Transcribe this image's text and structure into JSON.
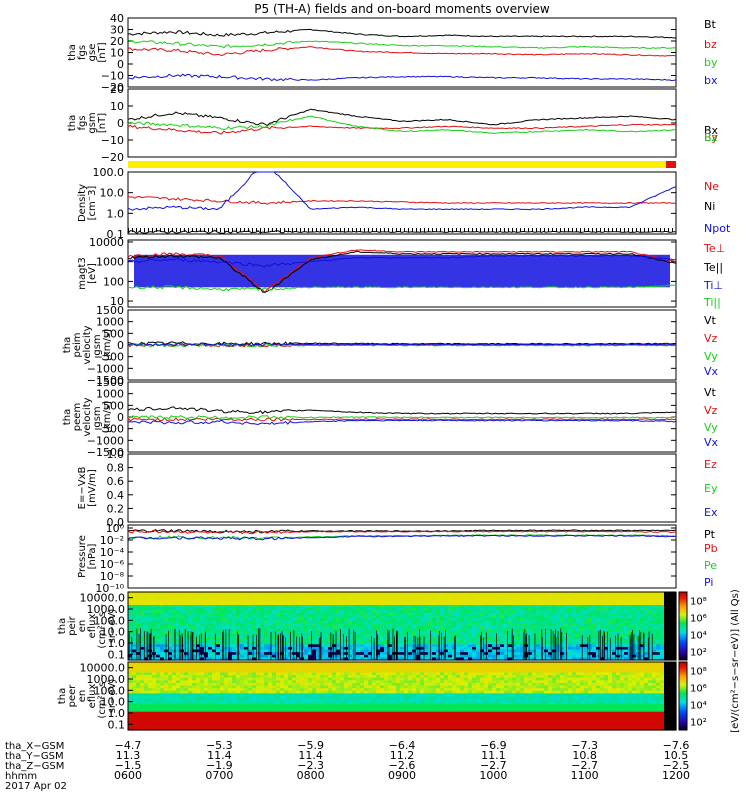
{
  "title": "P5 (TH-A) fields and on-board moments overview",
  "colors": {
    "black": "#000000",
    "red": "#e01010",
    "green": "#18d018",
    "blue": "#1010e0",
    "yellow": "#ffee00"
  },
  "chart_data": [
    {
      "type": "line",
      "ylabel": [
        "tha",
        "fgs",
        "gse",
        "[nT]"
      ],
      "ylim": [
        -20,
        40
      ],
      "yticks": [
        "40",
        "30",
        "20",
        "10",
        "0",
        "−10",
        "−20"
      ],
      "yvals": [
        40,
        30,
        20,
        10,
        0,
        -10,
        -20
      ],
      "series": [
        {
          "name": "Bt",
          "color": "#000000",
          "values": [
            26,
            28,
            25,
            27,
            30,
            26,
            24,
            25,
            24,
            24,
            24,
            24,
            23
          ]
        },
        {
          "name": "bz",
          "color": "#e01010",
          "values": [
            13,
            12,
            8,
            12,
            15,
            11,
            10,
            9,
            9,
            8,
            9,
            8,
            7
          ]
        },
        {
          "name": "by",
          "color": "#18d018",
          "values": [
            20,
            18,
            15,
            17,
            20,
            18,
            16,
            16,
            15,
            14,
            15,
            14,
            14
          ]
        },
        {
          "name": "bx",
          "color": "#1010e0",
          "values": [
            -12,
            -10,
            -11,
            -13,
            -14,
            -12,
            -11,
            -11,
            -12,
            -12,
            -13,
            -13,
            -14
          ]
        }
      ]
    },
    {
      "type": "line",
      "ylabel": [
        "tha",
        "fgs",
        "gsm",
        "[nT]"
      ],
      "ylim": [
        -20,
        20
      ],
      "yticks": [
        "20",
        "10",
        "0",
        "−10",
        "−20"
      ],
      "yvals": [
        20,
        10,
        0,
        -10,
        -20
      ],
      "series": [
        {
          "name": "Bx",
          "color": "#000000",
          "values": [
            2,
            6,
            3,
            -1,
            8,
            4,
            1,
            2,
            -1,
            2,
            3,
            4,
            2
          ]
        },
        {
          "name": "By",
          "color": "#e01010",
          "values": [
            -2,
            -4,
            -6,
            -3,
            -2,
            -3,
            -3,
            -2,
            -3,
            -3,
            -2,
            -1,
            -1
          ]
        },
        {
          "name": "Bz",
          "color": "#18d018",
          "values": [
            0,
            -1,
            -3,
            -2,
            4,
            -2,
            -5,
            -4,
            -6,
            -5,
            -4,
            -5,
            -4
          ]
        }
      ]
    },
    {
      "type": "line",
      "ylabel": [
        "Density",
        "[cm⁻3]"
      ],
      "ylim": [
        -1,
        2
      ],
      "log": true,
      "yticks": [
        "100.0",
        "10.0",
        "1.0",
        "0.1"
      ],
      "yvals": [
        2,
        1,
        0,
        -1
      ],
      "series": [
        {
          "name": "Ne",
          "color": "#e01010",
          "values": [
            0.8,
            0.7,
            0.6,
            0.5,
            0.6,
            0.6,
            0.55,
            0.5,
            0.5,
            0.5,
            0.5,
            0.5,
            0.5
          ]
        },
        {
          "name": "Ni",
          "color": "#000000",
          "values": [
            -0.9,
            -0.9,
            -0.9,
            -0.9,
            -0.9,
            -0.9,
            -0.9,
            -0.9,
            -0.9,
            -0.9,
            -0.9,
            -0.9,
            -0.9
          ]
        },
        {
          "name": "Npot",
          "color": "#1010e0",
          "values": [
            0.2,
            0.3,
            0.2,
            2.5,
            0.2,
            0.3,
            0.2,
            0.2,
            0.2,
            0.2,
            0.3,
            0.3,
            1.3
          ]
        }
      ]
    },
    {
      "type": "line",
      "ylabel": [
        "magt3",
        "[eV]"
      ],
      "ylim": [
        0.7,
        4.1
      ],
      "log": true,
      "yticks": [
        "10000",
        "1000",
        "100",
        "10"
      ],
      "yvals": [
        4,
        3,
        2,
        1
      ],
      "series": [
        {
          "name": "Te⊥",
          "color": "#e01010",
          "values": [
            3.3,
            3.4,
            3.3,
            1.5,
            3.2,
            3.6,
            3.5,
            3.5,
            3.5,
            3.5,
            3.5,
            3.5,
            3.0
          ]
        },
        {
          "name": "Te||",
          "color": "#000000",
          "values": [
            3.2,
            3.3,
            3.2,
            1.4,
            3.1,
            3.5,
            3.4,
            3.4,
            3.4,
            3.4,
            3.4,
            3.4,
            2.9
          ]
        },
        {
          "name": "Ti⊥",
          "color": "#1010e0",
          "values": [
            3.0,
            3.1,
            3.0,
            2.8,
            3.0,
            3.2,
            3.2,
            3.2,
            3.3,
            3.3,
            3.3,
            3.3,
            3.1
          ]
        },
        {
          "name": "Ti||",
          "color": "#18d018",
          "values": [
            1.7,
            1.7,
            1.6,
            1.6,
            1.7,
            1.7,
            1.7,
            1.7,
            1.7,
            1.7,
            1.7,
            1.7,
            1.8
          ]
        }
      ]
    },
    {
      "type": "line",
      "ylabel": [
        "tha",
        "peim",
        "velocity",
        "gsm",
        "[km/s]"
      ],
      "ylim": [
        -1500,
        1500
      ],
      "yticks": [
        "1500",
        "1000",
        "500",
        "0",
        "−500",
        "−1000",
        "−1500"
      ],
      "yvals": [
        1500,
        1000,
        500,
        0,
        -500,
        -1000,
        -1500
      ],
      "series": [
        {
          "name": "Vt",
          "color": "#000000",
          "values": [
            60,
            80,
            50,
            60,
            70,
            60,
            50,
            50,
            50,
            50,
            50,
            50,
            60
          ]
        },
        {
          "name": "Vz",
          "color": "#e01010",
          "values": [
            0,
            10,
            0,
            -10,
            0,
            0,
            0,
            0,
            0,
            0,
            0,
            0,
            0
          ]
        },
        {
          "name": "Vy",
          "color": "#18d018",
          "values": [
            -20,
            -10,
            -20,
            -10,
            -20,
            -10,
            -20,
            -20,
            -20,
            -20,
            -20,
            -20,
            -20
          ]
        },
        {
          "name": "Vx",
          "color": "#1010e0",
          "values": [
            20,
            30,
            20,
            30,
            20,
            20,
            20,
            20,
            20,
            20,
            20,
            20,
            20
          ]
        }
      ]
    },
    {
      "type": "line",
      "ylabel": [
        "tha",
        "peem",
        "velocity",
        "gsm",
        "[km/s]"
      ],
      "ylim": [
        -1500,
        1500
      ],
      "yticks": [
        "1500",
        "1000",
        "500",
        "0",
        "−500",
        "−1000",
        "−1500"
      ],
      "yvals": [
        1500,
        1000,
        500,
        0,
        -500,
        -1000,
        -1500
      ],
      "series": [
        {
          "name": "Vt",
          "color": "#000000",
          "values": [
            300,
            400,
            250,
            200,
            300,
            200,
            150,
            150,
            150,
            150,
            150,
            150,
            200
          ]
        },
        {
          "name": "Vz",
          "color": "#e01010",
          "values": [
            -100,
            -100,
            -100,
            -100,
            -100,
            -100,
            -100,
            -100,
            -100,
            -100,
            -100,
            -100,
            -100
          ]
        },
        {
          "name": "Vy",
          "color": "#18d018",
          "values": [
            -20,
            0,
            -20,
            0,
            -20,
            0,
            -20,
            -20,
            -20,
            -20,
            -20,
            -20,
            -20
          ]
        },
        {
          "name": "Vx",
          "color": "#1010e0",
          "values": [
            -200,
            -250,
            -200,
            -300,
            -200,
            -150,
            -150,
            -150,
            -150,
            -150,
            -150,
            -150,
            -200
          ]
        }
      ]
    },
    {
      "type": "line",
      "ylabel": [
        "E=−VxB",
        "[mV/m]"
      ],
      "ylim": [
        0,
        1
      ],
      "yticks": [
        "1.0",
        "0.8",
        "0.6",
        "0.4",
        "0.2",
        "0.0"
      ],
      "yvals": [
        1.0,
        0.8,
        0.6,
        0.4,
        0.2,
        0.0
      ],
      "series": [
        {
          "name": "Ez",
          "color": "#e01010",
          "values": []
        },
        {
          "name": "Ey",
          "color": "#18d018",
          "values": []
        },
        {
          "name": "Ex",
          "color": "#1010e0",
          "values": []
        }
      ]
    },
    {
      "type": "line",
      "ylabel": [
        "Pressure",
        "[nPa]"
      ],
      "ylim": [
        -10,
        0.5
      ],
      "log": true,
      "yticks": [
        "10⁰",
        "10⁻²",
        "10⁻⁴",
        "10⁻⁶",
        "10⁻⁸",
        "10⁻¹⁰"
      ],
      "yvals": [
        0,
        -2,
        -4,
        -6,
        -8,
        -10
      ],
      "series": [
        {
          "name": "Pt",
          "color": "#000000",
          "values": [
            -0.5,
            -0.5,
            -0.6,
            -0.6,
            -0.5,
            -0.5,
            -0.5,
            -0.5,
            -0.4,
            -0.4,
            -0.4,
            -0.4,
            -0.4
          ]
        },
        {
          "name": "Pb",
          "color": "#e01010",
          "values": [
            -0.6,
            -0.6,
            -0.8,
            -0.7,
            -0.6,
            -0.6,
            -0.6,
            -0.6,
            -0.6,
            -0.6,
            -0.6,
            -0.6,
            -0.7
          ]
        },
        {
          "name": "Pe",
          "color": "#18d018",
          "values": [
            -1.6,
            -1.5,
            -1.6,
            -1.7,
            -1.5,
            -1.3,
            -1.3,
            -1.2,
            -1.2,
            -1.2,
            -1.2,
            -1.2,
            -1.3
          ]
        },
        {
          "name": "Pi",
          "color": "#1010e0",
          "values": [
            -1.7,
            -1.6,
            -1.7,
            -1.8,
            -1.6,
            -1.4,
            -1.4,
            -1.3,
            -1.3,
            -1.3,
            -1.3,
            -1.3,
            -1.4
          ]
        }
      ]
    },
    {
      "type": "heatmap",
      "ylabel": [
        "tha",
        "peir",
        "en",
        "eflux",
        "(cm²−s−",
        "sr−eV)"
      ],
      "yticks": [
        "10000.0",
        "1000.0",
        "100.0",
        "10.0",
        "1.0",
        "0.1"
      ],
      "yvals": [
        4,
        3,
        2,
        1,
        0,
        -1
      ],
      "colorbar_ticks": [
        "10⁸",
        "10⁶",
        "10⁴",
        "10²"
      ]
    },
    {
      "type": "heatmap",
      "ylabel": [
        "tha",
        "peer",
        "en",
        "eflux",
        "(cm²−s−",
        "sr−eV)"
      ],
      "yticks": [
        "10000.0",
        "1000.0",
        "100.0",
        "10.0",
        "1.0",
        "0.1"
      ],
      "yvals": [
        4,
        3,
        2,
        1,
        0,
        -1
      ],
      "colorbar_ticks": [
        "10⁸",
        "10⁶",
        "10⁴",
        "10²"
      ]
    }
  ],
  "colorbar_label": "[eV/(cm²−s−sr−eV)] (All Qs)",
  "xaxis": {
    "rows": [
      {
        "label": "tha_X−GSM",
        "values": [
          "−4.7",
          "−5.3",
          "−5.9",
          "−6.4",
          "−6.9",
          "−7.3",
          "−7.6"
        ]
      },
      {
        "label": "tha_Y−GSM",
        "values": [
          "11.3",
          "11.4",
          "11.4",
          "11.2",
          "11.1",
          "10.8",
          "10.5"
        ]
      },
      {
        "label": "tha_Z−GSM",
        "values": [
          "−1.5",
          "−1.9",
          "−2.3",
          "−2.6",
          "−2.7",
          "−2.7",
          "−2.5"
        ]
      },
      {
        "label": "hhmm",
        "values": [
          "0600",
          "0700",
          "0800",
          "0900",
          "1000",
          "1100",
          "1200"
        ]
      }
    ],
    "date": "2017 Apr 02"
  }
}
